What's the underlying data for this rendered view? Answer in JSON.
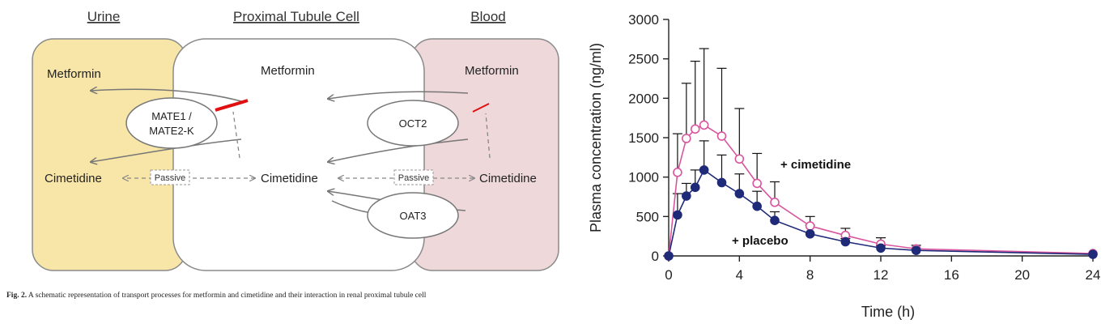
{
  "diagram": {
    "headers": {
      "urine": "Urine",
      "cell": "Proximal Tubule Cell",
      "blood": "Blood"
    },
    "metformin": "Metformin",
    "cimetidine": "Cimetidine",
    "transporters": {
      "mate_line1": "MATE1 /",
      "mate_line2": "MATE2-K",
      "oct2": "OCT2",
      "oat3": "OAT3"
    },
    "passive": "Passive",
    "colors": {
      "urine": "#f8e6a8",
      "blood": "#efd8da",
      "inhibit": "#e01010"
    }
  },
  "caption": {
    "label": "Fig. 2.",
    "text": " A schematic representation of transport processes for metformin and cimetidine and their interaction in renal proximal tubule cell"
  },
  "chart_data": {
    "type": "line",
    "title": "",
    "xlabel": "Time (h)",
    "ylabel": "Plasma concentration (ng/ml)",
    "xlim": [
      0,
      24
    ],
    "ylim": [
      0,
      3000
    ],
    "xticks": [
      0,
      4,
      8,
      12,
      16,
      20,
      24
    ],
    "yticks": [
      0,
      500,
      1000,
      1500,
      2000,
      2500,
      3000
    ],
    "grid": false,
    "series": [
      {
        "name": "+ cimetidine",
        "color": "#d9559e",
        "marker": "open-circle",
        "x": [
          0,
          0.5,
          1,
          1.5,
          2,
          3,
          4,
          5,
          6,
          8,
          10,
          12,
          14,
          24
        ],
        "y": [
          0,
          1060,
          1490,
          1610,
          1660,
          1520,
          1230,
          920,
          680,
          380,
          260,
          150,
          90,
          30
        ],
        "err": [
          0,
          490,
          700,
          860,
          970,
          860,
          640,
          380,
          260,
          120,
          90,
          80,
          45,
          0
        ]
      },
      {
        "name": "+ placebo",
        "color": "#1f2a78",
        "marker": "filled-circle",
        "x": [
          0,
          0.5,
          1,
          1.5,
          2,
          3,
          4,
          5,
          6,
          8,
          10,
          12,
          14,
          24
        ],
        "y": [
          0,
          520,
          760,
          870,
          1090,
          930,
          790,
          630,
          450,
          280,
          180,
          100,
          70,
          20
        ],
        "err": [
          0,
          270,
          160,
          220,
          370,
          350,
          250,
          190,
          110,
          110,
          40,
          30,
          20,
          0
        ]
      }
    ]
  }
}
